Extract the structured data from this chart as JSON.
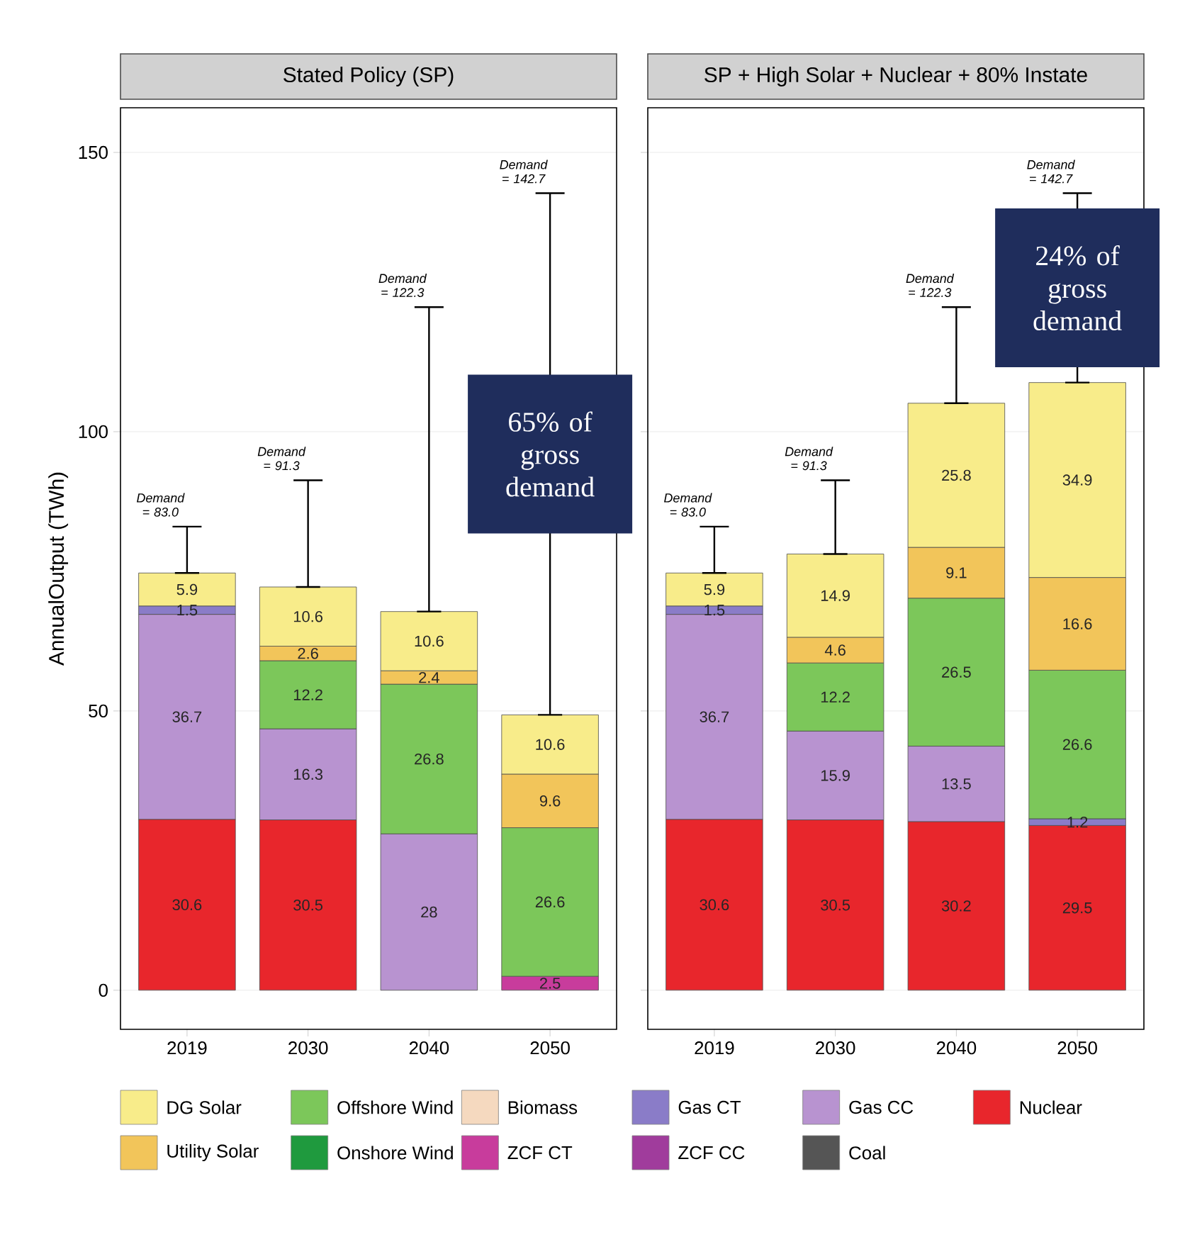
{
  "chart_data": [
    {
      "type": "bar",
      "title": "Stated Policy (SP)",
      "ylabel": "AnnualOutput (TWh)",
      "categories": [
        "2019",
        "2030",
        "2040",
        "2050"
      ],
      "stacked": true,
      "data_labels": true,
      "legend": "bottom",
      "grid": "y",
      "ylim": [
        -7,
        158
      ],
      "yticks": [
        0,
        50,
        100,
        150
      ],
      "series": [
        {
          "name": "Nuclear",
          "color": "#e8262c",
          "values": [
            30.6,
            30.5,
            null,
            null
          ]
        },
        {
          "name": "Coal",
          "color": "#555555",
          "values": [
            null,
            null,
            null,
            null
          ]
        },
        {
          "name": "Gas CC",
          "color": "#b893d0",
          "values": [
            36.7,
            16.3,
            28,
            null
          ]
        },
        {
          "name": "ZCF CC",
          "color": "#a03c9c",
          "values": [
            null,
            null,
            null,
            null
          ]
        },
        {
          "name": "Gas CT",
          "color": "#8a7cc8",
          "values": [
            1.5,
            null,
            null,
            null
          ]
        },
        {
          "name": "ZCF CT",
          "color": "#c83c9c",
          "values": [
            null,
            null,
            null,
            2.5
          ]
        },
        {
          "name": "Biomass",
          "color": "#f5d9bf",
          "values": [
            null,
            null,
            null,
            null
          ]
        },
        {
          "name": "Onshore Wind",
          "color": "#1f9a3e",
          "values": [
            null,
            null,
            null,
            null
          ]
        },
        {
          "name": "Offshore Wind",
          "color": "#7cc75a",
          "values": [
            null,
            12.2,
            26.8,
            26.6
          ]
        },
        {
          "name": "Utility Solar",
          "color": "#f2c55a",
          "values": [
            null,
            2.6,
            2.4,
            9.6
          ]
        },
        {
          "name": "DG Solar",
          "color": "#f8ec8a",
          "values": [
            5.9,
            10.6,
            10.6,
            10.6
          ],
          "errors": [
            [
              74.7,
              83.0
            ],
            [
              72.2,
              91.3
            ],
            [
              67.8,
              122.3
            ],
            [
              49.3,
              142.7
            ]
          ]
        }
      ],
      "annotations": [
        {
          "text": "Demand = 83.0",
          "x": "2019",
          "y": 83.0
        },
        {
          "text": "Demand = 91.3",
          "x": "2030",
          "y": 91.3
        },
        {
          "text": "Demand = 122.3",
          "x": "2040",
          "y": 122.3
        },
        {
          "text": "Demand = 142.7",
          "x": "2050",
          "y": 142.7
        },
        "65% of gross demand"
      ]
    },
    {
      "type": "bar",
      "title": "SP + High Solar + Nuclear + 80% Instate",
      "categories": [
        "2019",
        "2030",
        "2040",
        "2050"
      ],
      "stacked": true,
      "data_labels": true,
      "grid": "y",
      "tick_labels": "x",
      "ylim": [
        -7,
        158
      ],
      "yticks": [
        0,
        50,
        100,
        150
      ],
      "series": [
        {
          "color": "#e8262c",
          "values": [
            30.6,
            30.5,
            30.2,
            29.5
          ]
        },
        {
          "color": "#555555",
          "values": [
            null,
            null,
            null,
            null
          ]
        },
        {
          "color": "#b893d0",
          "values": [
            36.7,
            15.9,
            13.5,
            null
          ]
        },
        {
          "color": "#a03c9c",
          "values": [
            null,
            null,
            null,
            null
          ]
        },
        {
          "color": "#8a7cc8",
          "values": [
            1.5,
            null,
            null,
            1.2
          ]
        },
        {
          "color": "#c83c9c",
          "values": [
            null,
            null,
            null,
            null
          ]
        },
        {
          "color": "#f5d9bf",
          "values": [
            null,
            null,
            null,
            null
          ]
        },
        {
          "color": "#1f9a3e",
          "values": [
            null,
            null,
            null,
            null
          ]
        },
        {
          "color": "#7cc75a",
          "values": [
            null,
            12.2,
            26.5,
            26.6
          ]
        },
        {
          "color": "#f2c55a",
          "values": [
            null,
            4.6,
            9.1,
            16.6
          ]
        },
        {
          "color": "#f8ec8a",
          "values": [
            5.9,
            14.9,
            25.8,
            34.9
          ],
          "errors": [
            [
              74.7,
              83.0
            ],
            [
              78.1,
              91.3
            ],
            [
              105.1,
              122.3
            ],
            [
              108.8,
              142.7
            ]
          ]
        }
      ],
      "annotations": [
        {
          "text": "Demand = 83.0",
          "x": "2019",
          "y": 83.0
        },
        {
          "text": "Demand = 91.3",
          "x": "2030",
          "y": 91.3
        },
        {
          "text": "Demand = 122.3",
          "x": "2040",
          "y": 122.3
        },
        {
          "text": "Demand = 142.7",
          "x": "2050",
          "y": 142.7
        },
        "24% of gross demand"
      ]
    }
  ]
}
